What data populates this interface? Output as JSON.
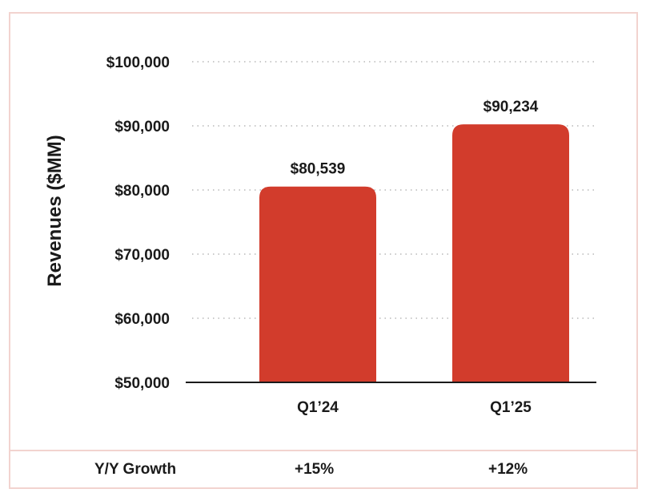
{
  "chart_data": {
    "type": "bar",
    "categories": [
      "Q1’24",
      "Q1’25"
    ],
    "values": [
      80539,
      90234
    ],
    "value_labels": [
      "$80,539",
      "$90,234"
    ],
    "ylabel": "Revenues ($MM)",
    "ylim": [
      50000,
      100000
    ],
    "yticks": [
      50000,
      60000,
      70000,
      80000,
      90000,
      100000
    ],
    "ytick_labels": [
      "$50,000",
      "$60,000",
      "$70,000",
      "$80,000",
      "$90,000",
      "$100,000"
    ],
    "grid": true,
    "bar_color": "#d23c2c"
  },
  "growth_row": {
    "label": "Y/Y Growth",
    "values": [
      "+15%",
      "+12%"
    ]
  }
}
